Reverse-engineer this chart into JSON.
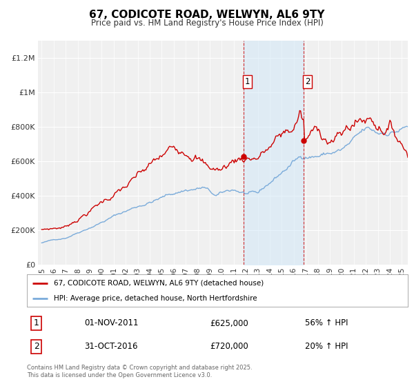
{
  "title": "67, CODICOTE ROAD, WELWYN, AL6 9TY",
  "subtitle": "Price paid vs. HM Land Registry's House Price Index (HPI)",
  "ylabel_ticks": [
    "£0",
    "£200K",
    "£400K",
    "£600K",
    "£800K",
    "£1M",
    "£1.2M"
  ],
  "ytick_values": [
    0,
    200000,
    400000,
    600000,
    800000,
    1000000,
    1200000
  ],
  "ylim": [
    0,
    1300000
  ],
  "xlim_start": 1994.7,
  "xlim_end": 2025.5,
  "purchase1_x": 2011.83,
  "purchase1_y": 625000,
  "purchase1_label": "01-NOV-2011",
  "purchase1_price": "£625,000",
  "purchase1_pct": "56% ↑ HPI",
  "purchase2_x": 2016.83,
  "purchase2_y": 720000,
  "purchase2_label": "31-OCT-2016",
  "purchase2_price": "£720,000",
  "purchase2_pct": "20% ↑ HPI",
  "line1_label": "67, CODICOTE ROAD, WELWYN, AL6 9TY (detached house)",
  "line2_label": "HPI: Average price, detached house, North Hertfordshire",
  "footnote": "Contains HM Land Registry data © Crown copyright and database right 2025.\nThis data is licensed under the Open Government Licence v3.0.",
  "line1_color": "#cc0000",
  "line2_color": "#7aabda",
  "shade_color": "#ddeeff",
  "background_color": "#f0f0f0"
}
